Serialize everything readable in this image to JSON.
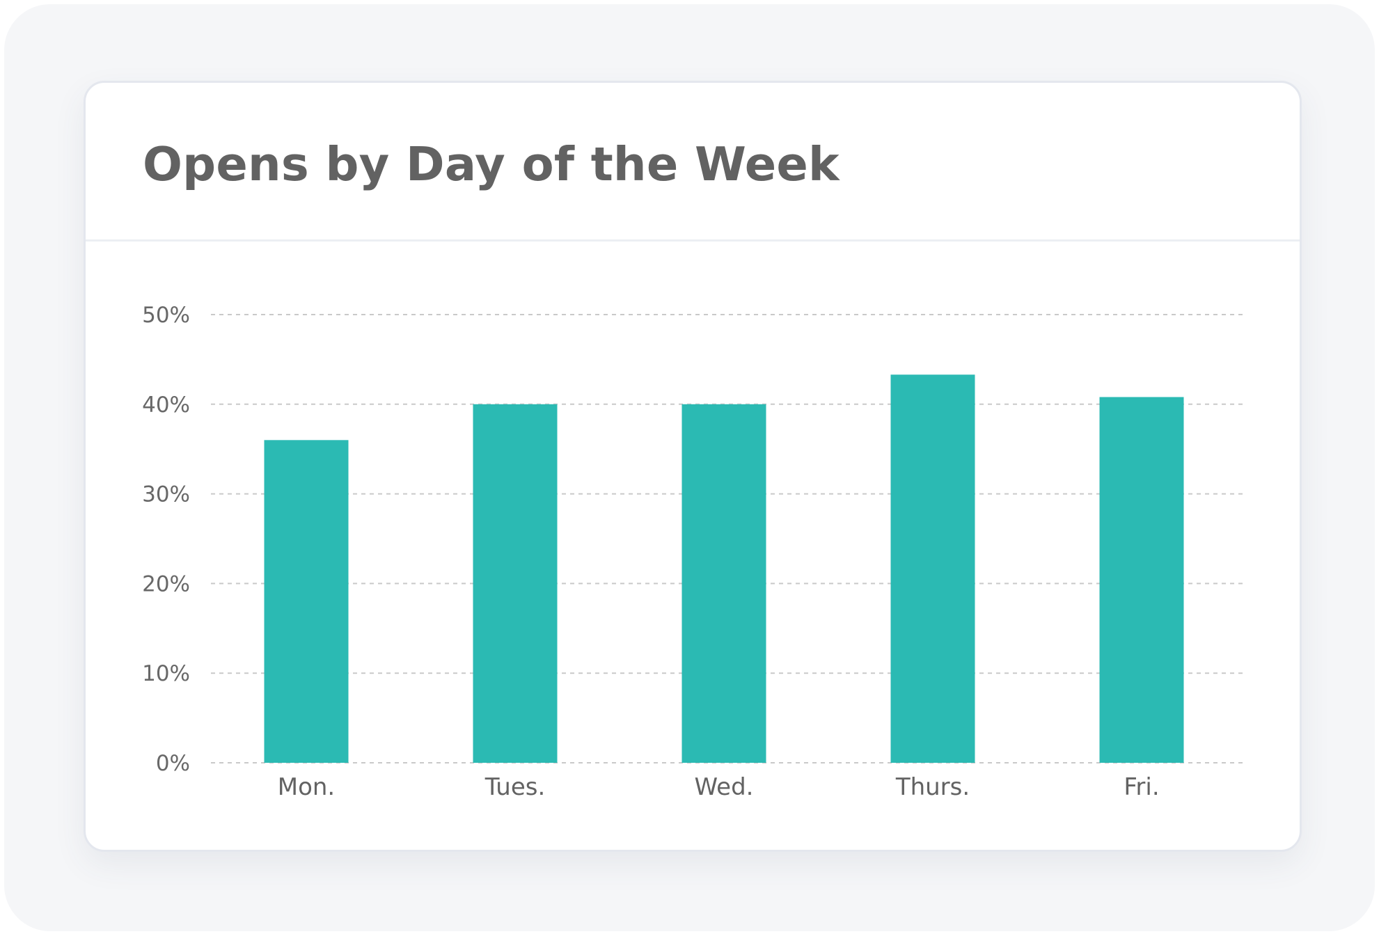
{
  "card": {
    "title": "Opens by Day of the Week"
  },
  "colors": {
    "bar": "#2bbab3",
    "gridline": "#c9c9c9",
    "text": "#626262"
  },
  "chart_data": {
    "type": "bar",
    "title": "Opens by Day of the Week",
    "categories": [
      "Mon.",
      "Tues.",
      "Wed.",
      "Thurs.",
      "Fri."
    ],
    "values": [
      36,
      40,
      40,
      43.3,
      40.8
    ],
    "value_unit": "%",
    "ylim": [
      0,
      50
    ],
    "yticks": [
      0,
      10,
      20,
      30,
      40,
      50
    ],
    "ytick_labels": [
      "0%",
      "10%",
      "20%",
      "30%",
      "40%",
      "50%"
    ],
    "xlabel": "",
    "ylabel": "",
    "grid": true,
    "grid_style": "dashed"
  }
}
